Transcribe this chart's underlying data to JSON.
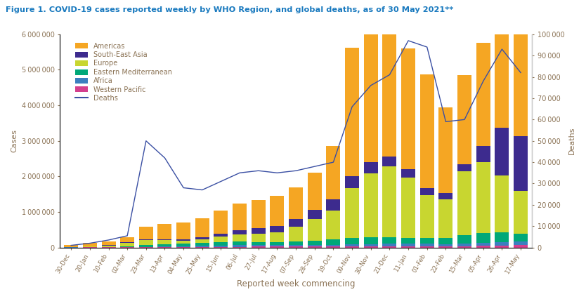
{
  "title": "Figure 1. COVID-19 cases reported weekly by WHO Region, and global deaths, as of 30 May 2021**",
  "xlabel": "Reported week commencing",
  "ylabel_left": "Cases",
  "ylabel_right": "Deaths",
  "background_color": "#ffffff",
  "title_color": "#1a7abf",
  "axis_label_color": "#8B7355",
  "tick_label_color": "#8B7355",
  "weeks": [
    "30-Dec",
    "20-Jan",
    "10-Feb",
    "02-Mar",
    "23-Mar",
    "13-Apr",
    "04-May",
    "25-May",
    "15-Jun",
    "06-Jul",
    "27-Jul",
    "17-Aug",
    "07-Sep",
    "28-Sep",
    "19-Oct",
    "09-Nov",
    "30-Nov",
    "21-Dec",
    "11-Jan",
    "01-Feb",
    "22-Feb",
    "15-Mar",
    "05-Apr",
    "26-Apr",
    "17-May"
  ],
  "americas": [
    60000,
    90000,
    110000,
    150000,
    350000,
    420000,
    480000,
    530000,
    650000,
    750000,
    800000,
    850000,
    900000,
    1050000,
    1500000,
    3600000,
    3900000,
    3700000,
    3400000,
    3200000,
    2400000,
    2500000,
    2900000,
    5200000,
    4000000
  ],
  "south_east_asia": [
    3000,
    5000,
    8000,
    12000,
    18000,
    25000,
    30000,
    45000,
    80000,
    120000,
    150000,
    180000,
    220000,
    260000,
    320000,
    340000,
    310000,
    280000,
    230000,
    200000,
    180000,
    200000,
    450000,
    1350000,
    1550000
  ],
  "europe": [
    8000,
    20000,
    40000,
    90000,
    150000,
    120000,
    80000,
    100000,
    150000,
    200000,
    230000,
    270000,
    400000,
    600000,
    800000,
    1400000,
    1800000,
    2000000,
    1700000,
    1200000,
    1100000,
    1800000,
    2000000,
    1600000,
    1200000
  ],
  "eastern_mediterranean": [
    3000,
    6000,
    12000,
    30000,
    50000,
    65000,
    75000,
    90000,
    100000,
    105000,
    95000,
    90000,
    105000,
    125000,
    160000,
    185000,
    185000,
    175000,
    155000,
    165000,
    165000,
    235000,
    275000,
    260000,
    210000
  ],
  "africa": [
    1500,
    2500,
    4000,
    6000,
    12000,
    20000,
    28000,
    38000,
    45000,
    45000,
    42000,
    46000,
    50000,
    52000,
    52000,
    60000,
    62000,
    70000,
    80000,
    72000,
    62000,
    72000,
    88000,
    105000,
    115000
  ],
  "western_pacific": [
    1500,
    2500,
    3500,
    4500,
    5500,
    6000,
    7000,
    9000,
    12000,
    17000,
    22000,
    22000,
    22000,
    22000,
    26000,
    30000,
    35000,
    40000,
    40000,
    35000,
    32000,
    36000,
    44000,
    52000,
    62000
  ],
  "deaths": [
    1000,
    2000,
    3500,
    5500,
    50000,
    42000,
    28000,
    27000,
    31000,
    35000,
    36000,
    35000,
    36000,
    38000,
    40000,
    66000,
    76000,
    81000,
    97000,
    94000,
    59000,
    60000,
    78000,
    93000,
    82000
  ],
  "colors": {
    "americas": "#F5A623",
    "south_east_asia": "#3D2B8E",
    "europe": "#C8D630",
    "eastern_mediterranean": "#00A878",
    "africa": "#3B7FBF",
    "western_pacific": "#D43F8D",
    "deaths": "#3A4FA3"
  },
  "ylim_left": [
    0,
    6000000
  ],
  "ylim_right": [
    0,
    100000
  ],
  "yticks_left": [
    0,
    1000000,
    2000000,
    3000000,
    4000000,
    5000000,
    6000000
  ],
  "yticks_right": [
    0,
    10000,
    20000,
    30000,
    40000,
    50000,
    60000,
    70000,
    80000,
    90000,
    100000
  ]
}
